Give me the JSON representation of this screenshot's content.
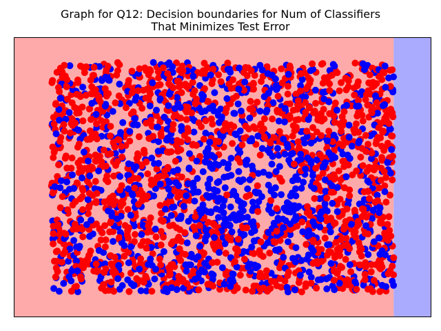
{
  "chart_data": {
    "type": "scatter",
    "title_lines": [
      "Graph for Q12: Decision boundaries for Num of Classifiers",
      "That Minimizes Test Error"
    ],
    "xlabel": "",
    "ylabel": "",
    "xlim": [
      -0.11,
      1.11
    ],
    "ylim": [
      -0.11,
      1.11
    ],
    "ticks_visible": false,
    "grid": false,
    "regions": [
      {
        "class": "red",
        "x_range": [
          -0.11,
          1.0
        ],
        "color": "#ffaaaa"
      },
      {
        "class": "blue",
        "x_range": [
          1.0,
          1.11
        ],
        "color": "#aaaaff"
      }
    ],
    "series": [
      {
        "label_color": "red",
        "color": "#ff0000",
        "marker": "o",
        "approx_count": 1500,
        "distribution": "uniform over [0,1]x[0,1], concentrated away from center"
      },
      {
        "label_color": "blue",
        "color": "#0000ff",
        "marker": "o",
        "approx_count": 1100,
        "distribution": "uniform over [0,1]x[0,1], concentrated near center (0.6,0.45)"
      }
    ]
  }
}
